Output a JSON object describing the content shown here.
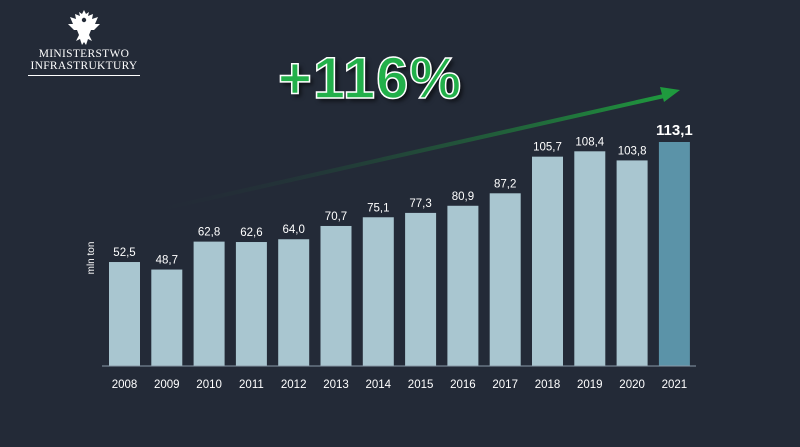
{
  "logo": {
    "line1": "MINISTERSTWO",
    "line2": "INFRASTRUKTURY",
    "emblem": "white-eagle-emblem-icon"
  },
  "headline": "+116%",
  "colors": {
    "background": "#232a37",
    "bar": "#a9c6d0",
    "bar_highlight": "#5b93a8",
    "headline": "#22b04a",
    "arrow": "#1f8f3a"
  },
  "chart_data": {
    "type": "bar",
    "ylabel": "mln ton",
    "xlabel": "",
    "categories": [
      "2008",
      "2009",
      "2010",
      "2011",
      "2012",
      "2013",
      "2014",
      "2015",
      "2016",
      "2017",
      "2018",
      "2019",
      "2020",
      "2021"
    ],
    "values": [
      52.5,
      48.7,
      62.8,
      62.6,
      64.0,
      70.7,
      75.1,
      77.3,
      80.9,
      87.2,
      105.7,
      108.4,
      103.8,
      113.1
    ],
    "value_labels": [
      "52,5",
      "48,7",
      "62,8",
      "62,6",
      "64,0",
      "70,7",
      "75,1",
      "77,3",
      "80,9",
      "87,2",
      "105,7",
      "108,4",
      "103,8",
      "113,1"
    ],
    "highlight_index": 13,
    "ylim": [
      0,
      113.1
    ],
    "grid": false,
    "legend": "none",
    "trend_arrow": true
  }
}
